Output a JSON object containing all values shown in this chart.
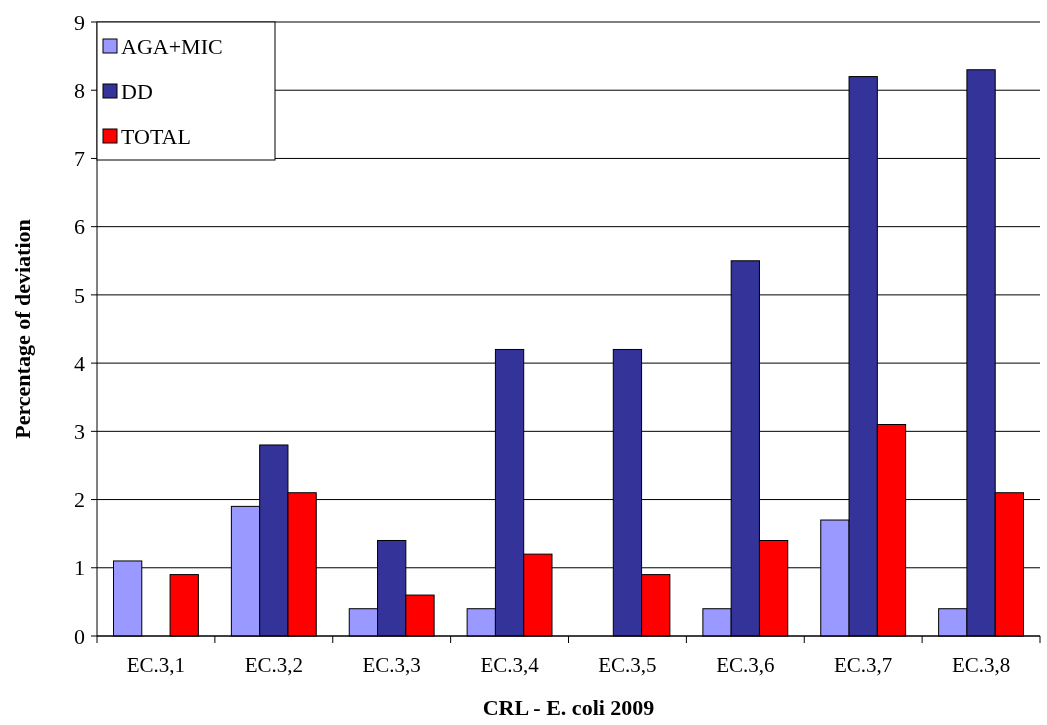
{
  "chart_data": {
    "type": "bar",
    "xlabel": "CRL - E. coli   2009",
    "ylabel": "Percentage of deviation",
    "categories": [
      "EC.3,1",
      "EC.3,2",
      "EC.3,3",
      "EC.3,4",
      "EC.3,5",
      "EC.3,6",
      "EC.3,7",
      "EC.3,8"
    ],
    "series": [
      {
        "name": "AGA+MIC",
        "color": "#9999ff",
        "values": [
          1.1,
          1.9,
          0.4,
          0.4,
          0,
          0.4,
          1.7,
          0.4
        ]
      },
      {
        "name": "DD",
        "color": "#333399",
        "values": [
          0,
          2.8,
          1.4,
          4.2,
          4.2,
          5.5,
          8.2,
          8.3
        ]
      },
      {
        "name": "TOTAL",
        "color": "#ff0000",
        "values": [
          0.9,
          2.1,
          0.6,
          1.2,
          0.9,
          1.4,
          3.1,
          2.1
        ]
      }
    ],
    "ylim": [
      0,
      9
    ],
    "yticks": [
      0,
      1,
      2,
      3,
      4,
      5,
      6,
      7,
      8,
      9
    ],
    "grid": "y",
    "legend": "top left"
  }
}
